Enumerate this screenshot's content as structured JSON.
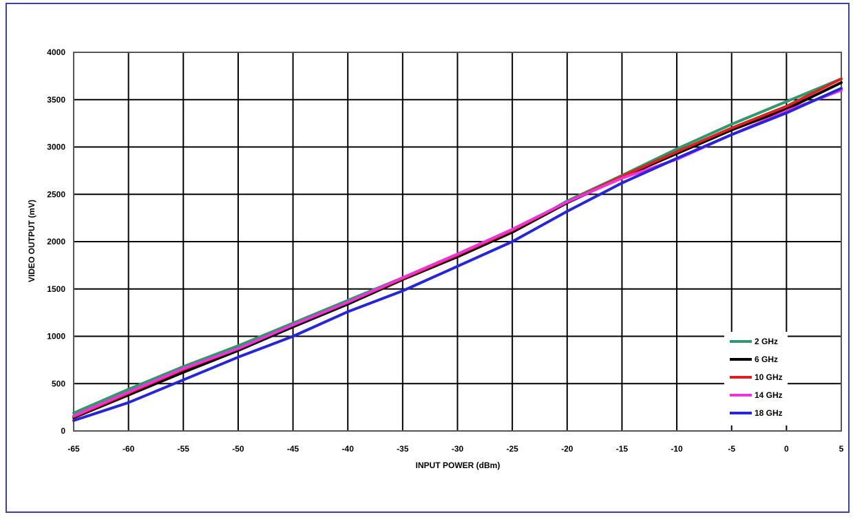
{
  "chart_data": {
    "type": "line",
    "xlabel": "INPUT POWER (dBm)",
    "ylabel": "VIDEO OUTPUT (mV)",
    "xlim": [
      -65,
      5
    ],
    "ylim": [
      0,
      4000
    ],
    "x_ticks": [
      "-65",
      "-60",
      "-55",
      "-50",
      "-45",
      "-40",
      "-35",
      "-30",
      "-25",
      "-20",
      "-15",
      "-10",
      "-5",
      "0",
      "5"
    ],
    "y_ticks": [
      "0",
      "500",
      "1000",
      "1500",
      "2000",
      "2500",
      "3000",
      "3500",
      "4000"
    ],
    "grid": true,
    "legend_position": "bottom-right",
    "x": [
      -65,
      -60,
      -55,
      -50,
      -45,
      -40,
      -35,
      -30,
      -25,
      -20,
      -15,
      -10,
      -5,
      0,
      5
    ],
    "series": [
      {
        "name": "2  GHz",
        "color": "#2e9a6a",
        "values": [
          190,
          440,
          680,
          900,
          1140,
          1380,
          1620,
          1860,
          2100,
          2430,
          2700,
          2980,
          3240,
          3480,
          3720
        ]
      },
      {
        "name": "6 GHz",
        "color": "#000000",
        "values": [
          140,
          380,
          620,
          850,
          1100,
          1340,
          1600,
          1840,
          2100,
          2410,
          2680,
          2930,
          3180,
          3400,
          3680
        ]
      },
      {
        "name": "10 GHz",
        "color": "#e02020",
        "values": [
          150,
          400,
          650,
          870,
          1120,
          1360,
          1610,
          1860,
          2120,
          2420,
          2690,
          2950,
          3200,
          3430,
          3720
        ]
      },
      {
        "name": "14 GHz",
        "color": "#ee33dd",
        "values": [
          160,
          410,
          660,
          870,
          1120,
          1360,
          1620,
          1870,
          2130,
          2420,
          2670,
          2870,
          3130,
          3380,
          3600
        ]
      },
      {
        "name": "18 GHz",
        "color": "#2525dd",
        "values": [
          110,
          300,
          540,
          780,
          1000,
          1260,
          1480,
          1740,
          2000,
          2320,
          2620,
          2880,
          3130,
          3360,
          3620
        ]
      }
    ]
  }
}
